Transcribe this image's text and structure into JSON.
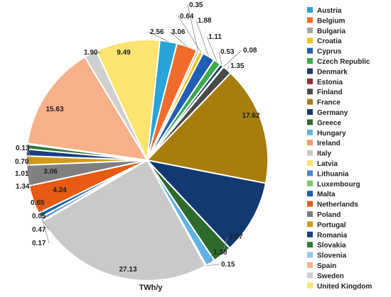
{
  "chart_data": {
    "type": "pie",
    "unit_label": "TWh/y",
    "legend_position": "right",
    "slices": [
      {
        "name": "Austria",
        "value": 2.56,
        "color": "#2aa3d8"
      },
      {
        "name": "Belgium",
        "value": 3.06,
        "color": "#f26b2a"
      },
      {
        "name": "Bulgaria",
        "value": 0.35,
        "color": "#a6a6a6"
      },
      {
        "name": "Croatia",
        "value": 0.64,
        "color": "#f7c318"
      },
      {
        "name": "Cyprus",
        "value": 1.88,
        "color": "#1f5fb4"
      },
      {
        "name": "Czech Republic",
        "value": 1.11,
        "color": "#3cab4a"
      },
      {
        "name": "Denmark",
        "value": 0.53,
        "color": "#1f3b67"
      },
      {
        "name": "Estonia",
        "value": 0.08,
        "color": "#9e2a2a"
      },
      {
        "name": "Finland",
        "value": 1.35,
        "color": "#4a4a4a"
      },
      {
        "name": "France",
        "value": 17.62,
        "color": "#a77d0d"
      },
      {
        "name": "Germany",
        "value": 11.0,
        "color": "#123a72"
      },
      {
        "name": "Greece",
        "value": 2.87,
        "color": "#2d6b2d"
      },
      {
        "name": "Hungary",
        "value": 1.38,
        "color": "#5fb3e4"
      },
      {
        "name": "Ireland",
        "value": 0.15,
        "color": "#f49a6c"
      },
      {
        "name": "Italy",
        "value": 27.13,
        "color": "#c9c9c9"
      },
      {
        "name": "Latvia",
        "value": 0.17,
        "color": "#fde06a"
      },
      {
        "name": "Lithuania",
        "value": 0.47,
        "color": "#4a86d0"
      },
      {
        "name": "Luxembourg",
        "value": 0.05,
        "color": "#7ac56f"
      },
      {
        "name": "Malta",
        "value": 0.65,
        "color": "#1565a8"
      },
      {
        "name": "Netherlands",
        "value": 4.24,
        "color": "#e65a12"
      },
      {
        "name": "Poland",
        "value": 3.06,
        "color": "#7f7f7f"
      },
      {
        "name": "Portugal",
        "value": 1.34,
        "color": "#d49a14"
      },
      {
        "name": "Romania",
        "value": 1.01,
        "color": "#1a3f84"
      },
      {
        "name": "Slovakia",
        "value": 0.7,
        "color": "#2f7a32"
      },
      {
        "name": "Slovenia",
        "value": 0.13,
        "color": "#93c7eb"
      },
      {
        "name": "Spain",
        "value": 15.63,
        "color": "#f8b08a"
      },
      {
        "name": "Sweden",
        "value": 1.9,
        "color": "#cfcfcf"
      },
      {
        "name": "United Kingdom",
        "value": 9.49,
        "color": "#fde36f"
      }
    ],
    "slice_labels": [
      "2.56",
      "3.06",
      "0.35",
      "0.64",
      "1.88",
      "1.11",
      "0.53",
      "0.08",
      "1.35",
      "17.62",
      "",
      "2.87",
      "1.38",
      "0.15",
      "27.13",
      "0.17",
      "0.47",
      "0.05",
      "0.65",
      "4.24",
      "3.06",
      "1.34",
      "1.01",
      "0.70",
      "0.13",
      "15.63",
      "1.90",
      "9.49"
    ]
  }
}
